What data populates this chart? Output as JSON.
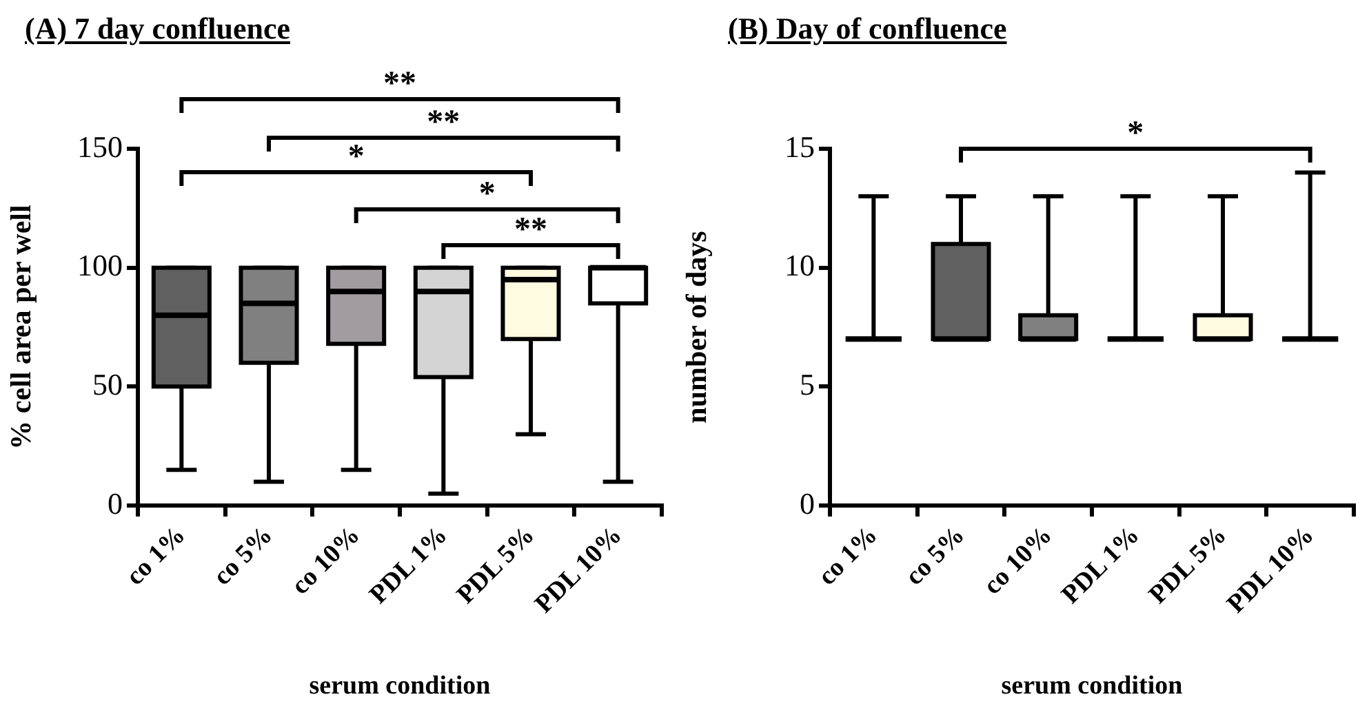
{
  "chart_data": [
    {
      "type": "box",
      "title": "(A) 7 day confluence",
      "xlabel": "serum condition",
      "ylabel": "% cell area per well",
      "categories": [
        "co 1%",
        "co 5%",
        "co 10%",
        "PDL 1%",
        "PDL 5%",
        "PDL 10%"
      ],
      "boxes": [
        {
          "low": 15,
          "q1": 50,
          "median": 80,
          "q3": 100,
          "high": 100
        },
        {
          "low": 10,
          "q1": 60,
          "median": 85,
          "q3": 100,
          "high": 100
        },
        {
          "low": 15,
          "q1": 68,
          "median": 90,
          "q3": 100,
          "high": 100
        },
        {
          "low": 5,
          "q1": 54,
          "median": 90,
          "q3": 100,
          "high": 100
        },
        {
          "low": 30,
          "q1": 70,
          "median": 95,
          "q3": 100,
          "high": 100
        },
        {
          "low": 10,
          "q1": 85,
          "median": 100,
          "q3": 100,
          "high": 100
        }
      ],
      "colors": [
        "#606060",
        "#808080",
        "#a09ca0",
        "#d4d4d4",
        "#fffbe0",
        "#ffffff"
      ],
      "ylim": [
        0,
        150
      ],
      "yticks": [
        0,
        50,
        100,
        150
      ],
      "grid": false,
      "legend": false,
      "annotations": [
        "**",
        "**",
        "*",
        "*",
        "**"
      ]
    },
    {
      "type": "box",
      "title": "(B) Day of confluence",
      "xlabel": "serum condition",
      "ylabel": "number of days",
      "categories": [
        "co 1%",
        "co 5%",
        "co 10%",
        "PDL 1%",
        "PDL 5%",
        "PDL 10%"
      ],
      "boxes": [
        {
          "low": 7,
          "q1": 7,
          "median": 7,
          "q3": 7,
          "high": 13
        },
        {
          "low": 7,
          "q1": 7,
          "median": 7,
          "q3": 11,
          "high": 13
        },
        {
          "low": 7,
          "q1": 7,
          "median": 7,
          "q3": 8,
          "high": 13
        },
        {
          "low": 7,
          "q1": 7,
          "median": 7,
          "q3": 7,
          "high": 13
        },
        {
          "low": 7,
          "q1": 7,
          "median": 7,
          "q3": 8,
          "high": 13
        },
        {
          "low": 7,
          "q1": 7,
          "median": 7,
          "q3": 7,
          "high": 14
        }
      ],
      "colors": [
        "#000000",
        "#606060",
        "#808080",
        "#000000",
        "#fffbe0",
        "#000000"
      ],
      "ylim": [
        0,
        15
      ],
      "yticks": [
        0,
        5,
        10,
        15
      ],
      "grid": false,
      "legend": false,
      "annotations": [
        "*"
      ]
    }
  ]
}
